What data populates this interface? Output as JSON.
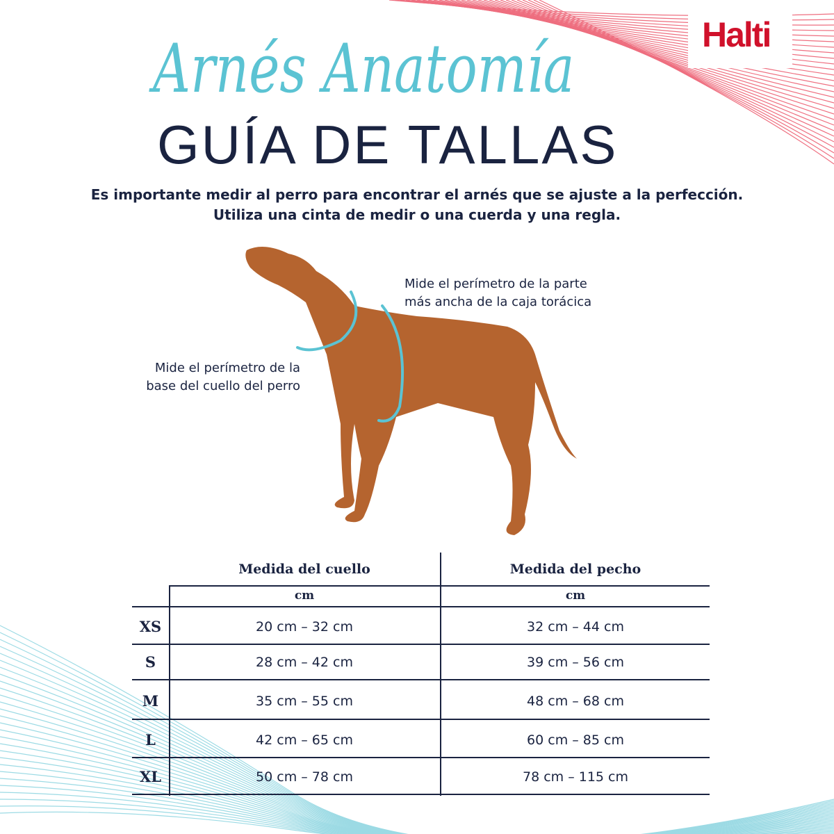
{
  "brand": {
    "logo": "Halti",
    "color": "#d0112b"
  },
  "colors": {
    "navy": "#1a2340",
    "teal": "#5bc3d3",
    "dog": "#b5642f"
  },
  "header": {
    "script_title": "Arnés Anatomía",
    "title": "GUÍA DE TALLAS"
  },
  "intro": {
    "line1": "Es importante medir al perro para encontrar el arnés que se ajuste a la perfección.",
    "line2": "Utiliza una cinta de medir o una cuerda y una regla."
  },
  "annotations": {
    "chest": {
      "line1": "Mide el perímetro de la parte",
      "line2": "más ancha de la caja torácica"
    },
    "neck": {
      "line1": "Mide el perímetro de la",
      "line2": "base del cuello del perro"
    }
  },
  "table": {
    "columns": [
      {
        "label": "Medida del cuello",
        "unit": "cm"
      },
      {
        "label": "Medida del pecho",
        "unit": "cm"
      }
    ],
    "rows": [
      {
        "size": "XS",
        "neck": "20 cm – 32 cm",
        "chest": "32 cm – 44 cm"
      },
      {
        "size": "S",
        "neck": "28 cm – 42 cm",
        "chest": "39 cm – 56 cm"
      },
      {
        "size": "M",
        "neck": "35 cm – 55 cm",
        "chest": "48 cm – 68 cm"
      },
      {
        "size": "L",
        "neck": "42 cm – 65 cm",
        "chest": "60 cm – 85 cm"
      },
      {
        "size": "XL",
        "neck": "50 cm – 78 cm",
        "chest": "78 cm – 115 cm"
      }
    ]
  }
}
